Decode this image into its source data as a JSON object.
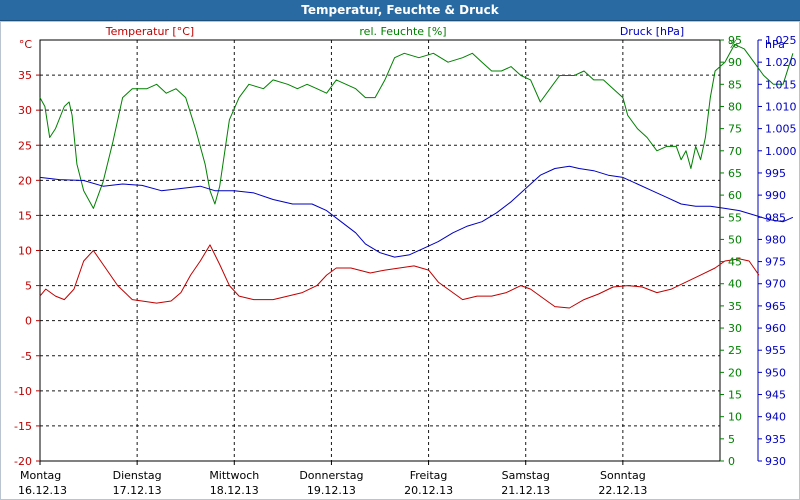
{
  "window": {
    "title": "Temperatur, Feuchte & Druck"
  },
  "colors": {
    "temp": "#c00000",
    "humidity": "#008000",
    "pressure": "#0000c0",
    "grid": "#000000",
    "titlebar": "#2a6aa3"
  },
  "chart_data": {
    "type": "line",
    "title": "Temperatur, Feuchte & Druck",
    "grid": true,
    "legend": "top",
    "x_labels": [
      {
        "day": "Montag",
        "date": "16.12.13"
      },
      {
        "day": "Dienstag",
        "date": "17.12.13"
      },
      {
        "day": "Mittwoch",
        "date": "18.12.13"
      },
      {
        "day": "Donnerstag",
        "date": "19.12.13"
      },
      {
        "day": "Freitag",
        "date": "20.12.13"
      },
      {
        "day": "Samstag",
        "date": "21.12.13"
      },
      {
        "day": "Sonntag",
        "date": "22.12.13"
      }
    ],
    "x_range_days": [
      0,
      7
    ],
    "axes": {
      "temp": {
        "unit": "°C",
        "min": -20,
        "max": 40,
        "step": 5
      },
      "humidity": {
        "unit": "%",
        "min": 0,
        "max": 95,
        "step": 5
      },
      "pressure": {
        "unit": "hPa",
        "min": 930,
        "max": 1025,
        "step": 5,
        "ticks": [
          "930",
          "935",
          "940",
          "945",
          "950",
          "955",
          "960",
          "965",
          "970",
          "975",
          "980",
          "985",
          "990",
          "995",
          "1.000",
          "1.005",
          "1.010",
          "1.015",
          "1.020",
          "1.025"
        ]
      }
    },
    "series": [
      {
        "name": "Temperatur [°C]",
        "axis": "temp",
        "points": [
          [
            0,
            3.5
          ],
          [
            0.06,
            4.5
          ],
          [
            0.16,
            3.5
          ],
          [
            0.25,
            3.0
          ],
          [
            0.35,
            4.5
          ],
          [
            0.45,
            8.5
          ],
          [
            0.55,
            10.0
          ],
          [
            0.65,
            8.0
          ],
          [
            0.8,
            5.0
          ],
          [
            0.95,
            3.0
          ],
          [
            1.05,
            2.8
          ],
          [
            1.2,
            2.5
          ],
          [
            1.35,
            2.8
          ],
          [
            1.45,
            4.0
          ],
          [
            1.55,
            6.5
          ],
          [
            1.65,
            8.5
          ],
          [
            1.75,
            10.8
          ],
          [
            1.85,
            8.0
          ],
          [
            1.95,
            5.0
          ],
          [
            2.05,
            3.5
          ],
          [
            2.2,
            3.0
          ],
          [
            2.4,
            3.0
          ],
          [
            2.55,
            3.5
          ],
          [
            2.7,
            4.0
          ],
          [
            2.85,
            5.0
          ],
          [
            2.95,
            6.5
          ],
          [
            3.05,
            7.5
          ],
          [
            3.2,
            7.5
          ],
          [
            3.4,
            6.8
          ],
          [
            3.55,
            7.2
          ],
          [
            3.7,
            7.5
          ],
          [
            3.85,
            7.8
          ],
          [
            4.0,
            7.2
          ],
          [
            4.1,
            5.5
          ],
          [
            4.2,
            4.5
          ],
          [
            4.35,
            3.0
          ],
          [
            4.5,
            3.5
          ],
          [
            4.65,
            3.5
          ],
          [
            4.8,
            4.0
          ],
          [
            4.95,
            5.0
          ],
          [
            5.05,
            4.5
          ],
          [
            5.2,
            3.0
          ],
          [
            5.3,
            2.0
          ],
          [
            5.45,
            1.8
          ],
          [
            5.6,
            3.0
          ],
          [
            5.75,
            3.8
          ],
          [
            5.9,
            4.8
          ],
          [
            6.05,
            5.0
          ],
          [
            6.2,
            4.8
          ],
          [
            6.35,
            4.0
          ],
          [
            6.5,
            4.5
          ],
          [
            6.65,
            5.5
          ],
          [
            6.8,
            6.5
          ],
          [
            6.95,
            7.5
          ],
          [
            7.05,
            8.5
          ],
          [
            7.2,
            8.8
          ],
          [
            7.3,
            8.5
          ],
          [
            7.35,
            7.5
          ],
          [
            7.4,
            6.5
          ]
        ]
      },
      {
        "name": "rel. Feuchte [%]",
        "axis": "humidity",
        "points": [
          [
            0,
            82
          ],
          [
            0.05,
            80
          ],
          [
            0.1,
            73
          ],
          [
            0.16,
            75
          ],
          [
            0.25,
            80
          ],
          [
            0.3,
            81
          ],
          [
            0.33,
            78
          ],
          [
            0.38,
            67
          ],
          [
            0.45,
            61
          ],
          [
            0.55,
            57
          ],
          [
            0.65,
            63
          ],
          [
            0.75,
            72
          ],
          [
            0.85,
            82
          ],
          [
            0.95,
            84
          ],
          [
            1.1,
            84
          ],
          [
            1.2,
            85
          ],
          [
            1.3,
            83
          ],
          [
            1.4,
            84
          ],
          [
            1.5,
            82
          ],
          [
            1.6,
            75
          ],
          [
            1.7,
            67
          ],
          [
            1.75,
            61
          ],
          [
            1.8,
            58
          ],
          [
            1.85,
            62
          ],
          [
            1.95,
            77
          ],
          [
            2.05,
            82
          ],
          [
            2.15,
            85
          ],
          [
            2.3,
            84
          ],
          [
            2.4,
            86
          ],
          [
            2.55,
            85
          ],
          [
            2.65,
            84
          ],
          [
            2.75,
            85
          ],
          [
            2.85,
            84
          ],
          [
            2.95,
            83
          ],
          [
            3.05,
            86
          ],
          [
            3.15,
            85
          ],
          [
            3.25,
            84
          ],
          [
            3.35,
            82
          ],
          [
            3.45,
            82
          ],
          [
            3.55,
            86
          ],
          [
            3.65,
            91
          ],
          [
            3.75,
            92
          ],
          [
            3.9,
            91
          ],
          [
            4.05,
            92
          ],
          [
            4.2,
            90
          ],
          [
            4.35,
            91
          ],
          [
            4.45,
            92
          ],
          [
            4.55,
            90
          ],
          [
            4.65,
            88
          ],
          [
            4.75,
            88
          ],
          [
            4.85,
            89
          ],
          [
            4.95,
            87
          ],
          [
            5.05,
            86
          ],
          [
            5.15,
            81
          ],
          [
            5.25,
            84
          ],
          [
            5.35,
            87
          ],
          [
            5.5,
            87
          ],
          [
            5.6,
            88
          ],
          [
            5.7,
            86
          ],
          [
            5.8,
            86
          ],
          [
            5.9,
            84
          ],
          [
            6.0,
            82
          ],
          [
            6.05,
            78
          ],
          [
            6.15,
            75
          ],
          [
            6.25,
            73
          ],
          [
            6.35,
            70
          ],
          [
            6.45,
            71
          ],
          [
            6.55,
            71
          ],
          [
            6.6,
            68
          ],
          [
            6.65,
            70
          ],
          [
            6.7,
            66
          ],
          [
            6.75,
            71
          ],
          [
            6.8,
            68
          ],
          [
            6.85,
            73
          ],
          [
            6.9,
            82
          ],
          [
            6.95,
            88
          ],
          [
            7.0,
            89
          ],
          [
            7.05,
            90
          ],
          [
            7.15,
            94
          ],
          [
            7.25,
            93
          ],
          [
            7.35,
            90
          ],
          [
            7.45,
            87
          ],
          [
            7.55,
            85
          ],
          [
            7.65,
            85
          ],
          [
            7.75,
            92
          ]
        ]
      },
      {
        "name": "Druck [hPa]",
        "axis": "pressure",
        "points": [
          [
            0,
            994.0
          ],
          [
            0.2,
            993.5
          ],
          [
            0.45,
            993.3
          ],
          [
            0.65,
            992.0
          ],
          [
            0.85,
            992.5
          ],
          [
            1.05,
            992.2
          ],
          [
            1.25,
            991.0
          ],
          [
            1.45,
            991.5
          ],
          [
            1.65,
            992.0
          ],
          [
            1.8,
            991.0
          ],
          [
            2.0,
            991.0
          ],
          [
            2.2,
            990.5
          ],
          [
            2.4,
            989.0
          ],
          [
            2.6,
            988.0
          ],
          [
            2.8,
            988.0
          ],
          [
            2.95,
            986.5
          ],
          [
            3.1,
            984.0
          ],
          [
            3.25,
            981.5
          ],
          [
            3.35,
            979.0
          ],
          [
            3.5,
            977.0
          ],
          [
            3.65,
            976.0
          ],
          [
            3.8,
            976.5
          ],
          [
            3.95,
            978.0
          ],
          [
            4.1,
            979.5
          ],
          [
            4.25,
            981.5
          ],
          [
            4.4,
            983.0
          ],
          [
            4.55,
            984.0
          ],
          [
            4.7,
            986.0
          ],
          [
            4.85,
            988.5
          ],
          [
            5.0,
            991.5
          ],
          [
            5.15,
            994.5
          ],
          [
            5.3,
            996.0
          ],
          [
            5.45,
            996.5
          ],
          [
            5.55,
            996.0
          ],
          [
            5.7,
            995.5
          ],
          [
            5.85,
            994.5
          ],
          [
            6.0,
            994.0
          ],
          [
            6.15,
            992.5
          ],
          [
            6.3,
            991.0
          ],
          [
            6.45,
            989.5
          ],
          [
            6.6,
            988.0
          ],
          [
            6.75,
            987.5
          ],
          [
            6.9,
            987.5
          ],
          [
            7.05,
            987.0
          ],
          [
            7.2,
            986.5
          ],
          [
            7.35,
            985.5
          ],
          [
            7.5,
            984.5
          ],
          [
            7.65,
            984.0
          ],
          [
            7.75,
            985.0
          ]
        ]
      }
    ]
  }
}
